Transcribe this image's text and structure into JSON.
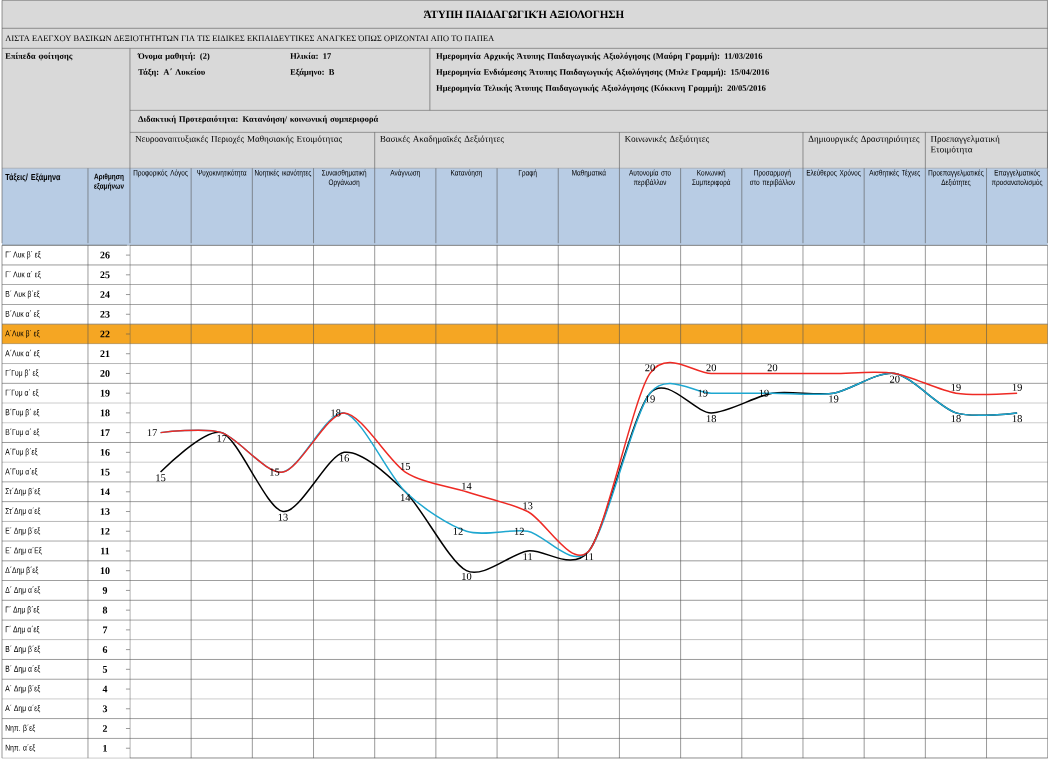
{
  "chart_data": {
    "type": "line",
    "title": "ΆΤΥΠΗ ΠΑΙΔΑΓΩΓΙΚΉ ΑΞΙΟΛΟΓΗΣΗ",
    "subtitle": "ΛΙΣΤΑ ΕΛΕΓΧΟΥ ΒΑΣΙΚΩΝ ΔΕΞΙΟΤΗΤΗΤΩΝ ΓΙΑ ΤΙΣ ΕΙΔΙΚΕΣ ΕΚΠΑΙΔΕΥΤΙΚΕΣ ΑΝΑΓΚΕΣ ΌΠΩΣ ΟΡΙΖΟΝΤΑΙ ΑΠΟ ΤΟ ΠΑΠΕΑ",
    "ylabel": "Αριθμηση εξαμήνων",
    "annotations": [
      "Επίπεδα φοίτησης",
      "Όνομα μαθητή: (2)",
      "Ηλικία: 17",
      "Τάξη: Α΄ Λυκείου",
      "Εξάμηνο: Β",
      "Ημερομηνία Αρχικής Άτυπης Παιδαγωγικής Αξιολόγησης (Μαύρη Γραμμή): 11/03/2016",
      "Ημερομηνία Ενδιάμεσης Άτυπης Παιδαγωγικής Αξιολόγησης (Μπλε Γραμμή): 15/04/2016",
      "Ημερομηνία Τελικής Άτυπης Παιδαγωγικής Αξιολόγησης (Κόκκινη Γραμμή): 20/05/2016",
      "Διδακτική Προτεραιότητα: Κατανόηση/ κοινωνική συμπεριφορά",
      "Νευροαναπτυξιακές Περιοχές Μαθησιακής Ετοιμότητας",
      "Βασικές Ακαδημαϊκές Δεξιότητες",
      "Κοινωνικές Δεξιότητες",
      "Δημιουργικές Δραστηριότητες",
      "Προεπαγγελματική Ετοιμότητα",
      "Τάξεις/ Εξάμηνα"
    ],
    "categories": [
      "Προφορικός Λόγος",
      "Ψυχοκινητικότητα",
      "Νοητικές ικανότητες",
      "Συναισθηματική Οργάνωση",
      "Ανάγνωση",
      "Κατανόηση",
      "Γραφή",
      "Μαθηματικά",
      "Αυτονομία στο περιβάλλον",
      "Κοινωνική Συμπεριφορά",
      "Προσαρμογή στο περιβάλλον",
      "Ελεύθερος Χρόνος",
      "Αισθητικές Τέχνες",
      "Προεπαγγελματικές Δεξιότητες",
      "Επαγγελματικός προσανατολισμός"
    ],
    "series": [
      {
        "color": "#000000",
        "values": [
          15,
          17,
          13,
          16,
          14,
          10,
          11,
          11,
          19,
          18,
          19,
          19,
          20,
          18,
          18
        ],
        "value_labels": [
          "15",
          "17",
          "13",
          "16",
          "14",
          "10",
          "11",
          "11",
          "19",
          "18",
          null,
          "19",
          "20",
          "18",
          "18"
        ]
      },
      {
        "color": "#1ea7d0",
        "values": [
          17,
          17,
          15,
          18,
          14,
          12,
          12,
          11,
          19,
          19,
          19,
          19,
          20,
          18,
          18
        ],
        "value_labels": [
          "17",
          null,
          "15",
          "18",
          null,
          "12",
          "12",
          null,
          null,
          "19",
          "19",
          null,
          null,
          null,
          null
        ]
      },
      {
        "color": "#ee2a24",
        "values": [
          17,
          17,
          15,
          18,
          15,
          14,
          13,
          11,
          20,
          20,
          20,
          20,
          20,
          19,
          19
        ],
        "value_labels": [
          null,
          null,
          null,
          null,
          "15",
          "14",
          "13",
          null,
          "20",
          "20",
          "20",
          null,
          null,
          "19",
          "19"
        ]
      }
    ],
    "ylim": [
      0.5,
      26.5
    ],
    "yticks": [
      1,
      2,
      3,
      4,
      5,
      6,
      7,
      8,
      9,
      10,
      11,
      12,
      13,
      14,
      15,
      16,
      17,
      18,
      19,
      20,
      21,
      22,
      23,
      24,
      25,
      26
    ],
    "y2_categories": [
      "Γ΄ Λυκ β΄ εξ",
      "Γ΄ Λυκ α΄ εξ",
      "Β΄ Λυκ β΄εξ",
      "Β΄Λυκ α΄ εξ",
      "Α΄Λυκ β΄ εξ",
      "Α΄Λυκ α΄ εξ",
      "Γ΄Γυμ β΄ εξ",
      "Γ΄Γυμ α΄ εξ",
      "Β΄Γυμ β΄ εξ",
      "Β΄Γυμ α΄ εξ",
      "Α΄Γυμ β΄εξ",
      "Α΄Γυμ α΄εξ",
      "Στ΄Δημ β΄εξ",
      "Στ΄Δημ α΄εξ",
      "Ε΄ Δημ β΄εξ",
      "Ε΄ Δημ α΄Εξ",
      "Δ΄Δημ β΄εξ",
      "Δ΄ Δημ α΄εξ",
      "Γ΄ Δημ β΄εξ",
      "Γ΄ Δημ α΄εξ",
      "Β΄ Δημ β΄εξ",
      "Β΄ Δημ α΄εξ",
      "Α΄ Δημ β΄εξ",
      "Α΄ Δημ α΄εξ",
      "Νηπ. β΄εξ",
      "Νηπ. α΄εξ"
    ],
    "bands": [
      {
        "axis": "y",
        "from": 21.5,
        "to": 22.5,
        "color": "#f5a623"
      }
    ],
    "grid": true
  }
}
